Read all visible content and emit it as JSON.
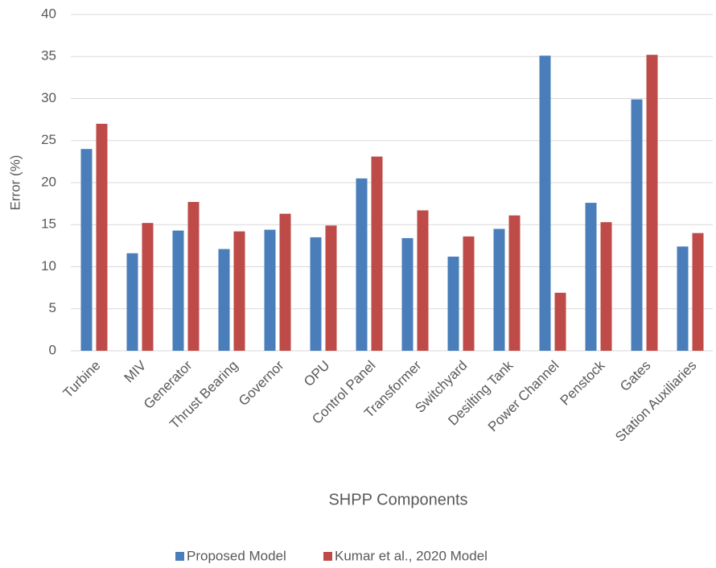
{
  "chart_data": {
    "type": "bar",
    "x_label": "SHPP Components",
    "y_label": "Error (%)",
    "categories": [
      "Turbine",
      "MIV",
      "Generator",
      "Thrust Bearing",
      "Governor",
      "OPU",
      "Control Panel",
      "Transformer",
      "Switchyard",
      "Desilting Tank",
      "Power Channel",
      "Penstock",
      "Gates",
      "Station Auxiliaries"
    ],
    "series": [
      {
        "name": "Proposed Model",
        "color": "#4a7ebb",
        "values": [
          24,
          11.6,
          14.3,
          12.1,
          14.4,
          13.5,
          20.5,
          13.4,
          11.2,
          14.5,
          35.1,
          17.6,
          29.9,
          12.4
        ]
      },
      {
        "name": "Kumar et al., 2020 Model",
        "color": "#be4b48",
        "values": [
          27,
          15.2,
          17.7,
          14.2,
          16.3,
          14.9,
          23.1,
          16.7,
          13.6,
          16.1,
          6.9,
          15.3,
          35.2,
          14.0
        ]
      }
    ],
    "ylim": [
      0,
      40
    ],
    "yticks": [
      0,
      5,
      10,
      15,
      20,
      25,
      30,
      35,
      40
    ],
    "grid": true,
    "legend": "bottom"
  }
}
